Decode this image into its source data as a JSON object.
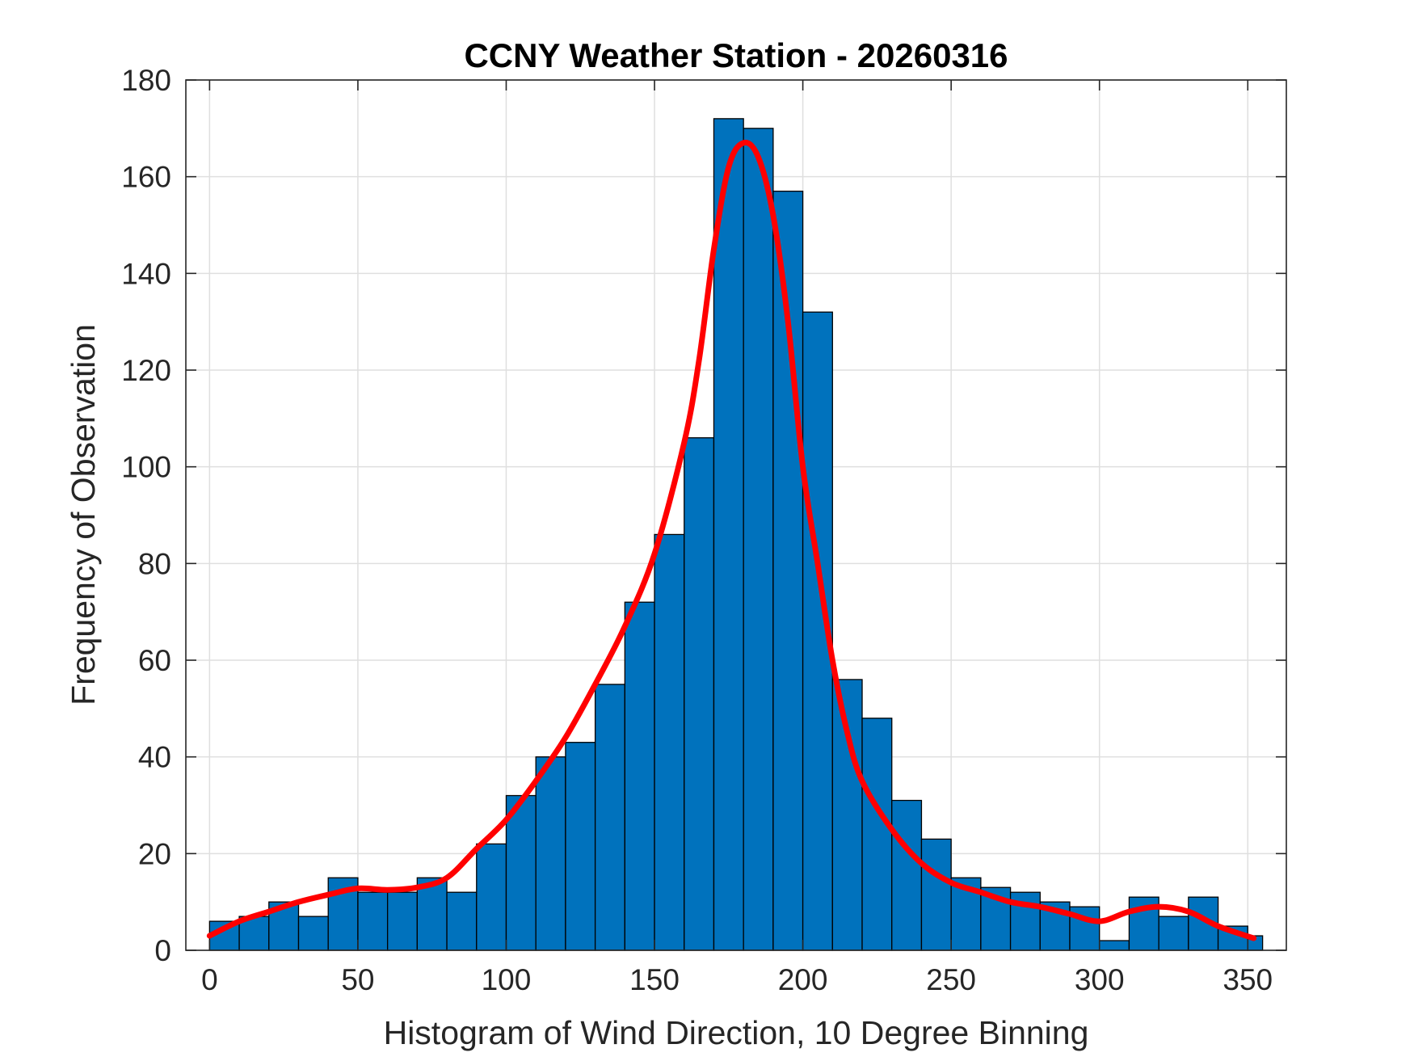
{
  "chart_data": {
    "type": "bar",
    "title": "CCNY Weather Station - 20260316",
    "xlabel": "Histogram of Wind Direction, 10 Degree Binning",
    "ylabel": "Frequency of Observation",
    "xlim": [
      -8,
      363
    ],
    "ylim": [
      0,
      180
    ],
    "grid": true,
    "x_ticks": [
      0,
      50,
      100,
      150,
      200,
      250,
      300,
      350
    ],
    "x_tick_labels": [
      "0",
      "50",
      "100",
      "150",
      "200",
      "250",
      "300",
      "350"
    ],
    "y_ticks": [
      0,
      20,
      40,
      60,
      80,
      100,
      120,
      140,
      160,
      180
    ],
    "y_tick_labels": [
      "0",
      "20",
      "40",
      "60",
      "80",
      "100",
      "120",
      "140",
      "160",
      "180"
    ],
    "bin_edges": [
      0,
      10,
      20,
      30,
      40,
      50,
      60,
      70,
      80,
      90,
      100,
      110,
      120,
      130,
      140,
      150,
      160,
      170,
      180,
      190,
      200,
      210,
      220,
      230,
      240,
      250,
      260,
      270,
      280,
      290,
      300,
      310,
      320,
      330,
      340,
      350,
      355
    ],
    "counts": [
      6,
      7,
      10,
      7,
      15,
      12,
      12,
      15,
      12,
      22,
      32,
      40,
      43,
      55,
      72,
      86,
      106,
      172,
      170,
      157,
      132,
      56,
      48,
      31,
      23,
      15,
      13,
      12,
      10,
      9,
      2,
      11,
      7,
      11,
      5,
      3
    ],
    "bar_color": "#0072BD",
    "bar_edge_color": "#000000",
    "fit_curve": {
      "color": "#FF0000",
      "x": [
        0,
        10,
        20,
        30,
        40,
        50,
        60,
        70,
        80,
        90,
        100,
        110,
        120,
        130,
        140,
        150,
        160,
        165,
        170,
        175,
        180,
        185,
        190,
        195,
        200,
        205,
        210,
        215,
        220,
        230,
        240,
        250,
        260,
        270,
        280,
        290,
        300,
        310,
        320,
        330,
        340,
        352
      ],
      "y": [
        3,
        6,
        8,
        10,
        11.5,
        12.8,
        12.5,
        13,
        15,
        21,
        27,
        35,
        44,
        55,
        67,
        82,
        105,
        122,
        145,
        162,
        167,
        164,
        152,
        130,
        100,
        80,
        60,
        45,
        35,
        25,
        18,
        14,
        12,
        10,
        9,
        7.5,
        6,
        8,
        9,
        8,
        5,
        2.5
      ]
    }
  }
}
